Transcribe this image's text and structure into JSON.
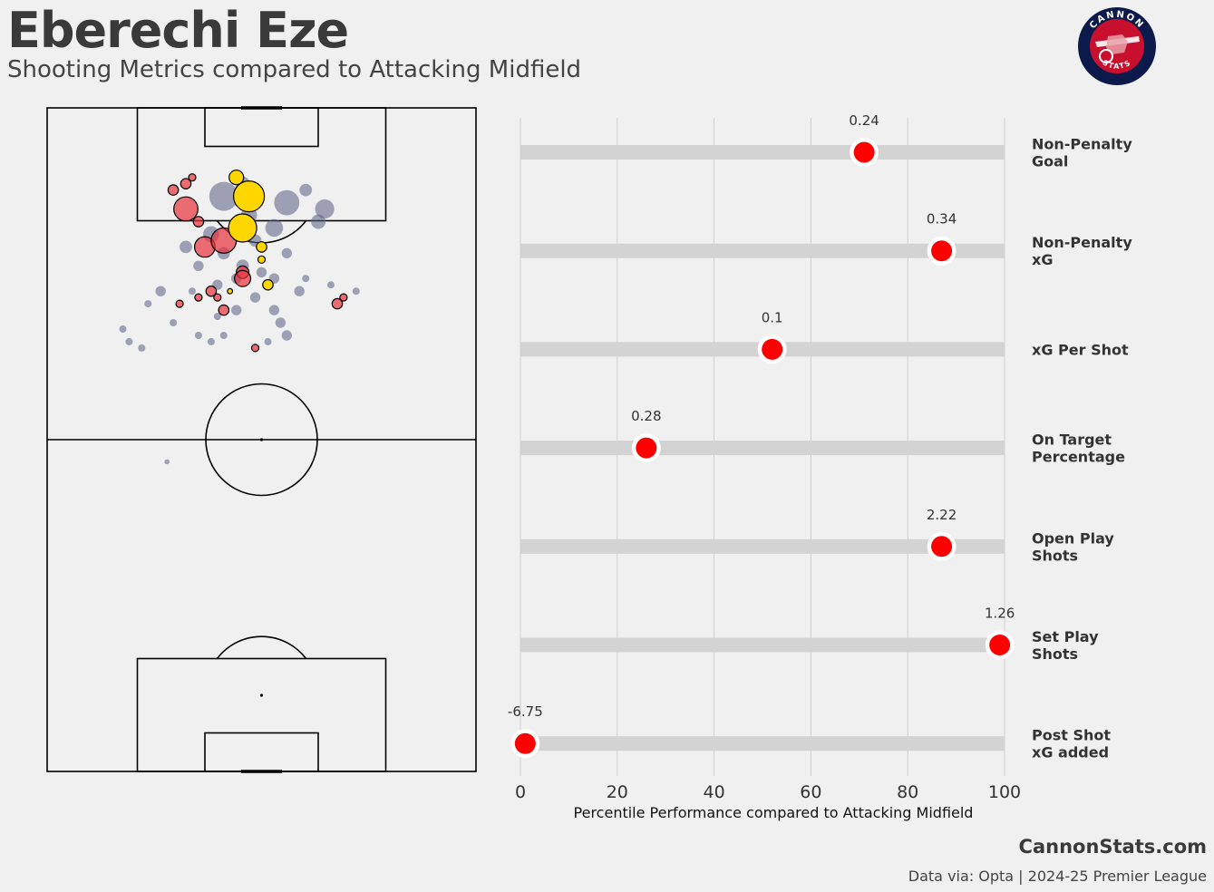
{
  "header": {
    "title": "Eberechi Eze",
    "subtitle": "Shooting Metrics compared to Attacking Midfield"
  },
  "logo": {
    "top_text": "CANNON",
    "bottom_text": "STATS",
    "icon": "cannon-crest-icon",
    "colors": {
      "outer": "#0b1a4a",
      "inner": "#c8102e"
    }
  },
  "footer": {
    "site": "CannonStats.com",
    "source": "Data via: Opta | 2024-25 Premier League"
  },
  "colors": {
    "background": "#f0f0f0",
    "bar_track": "#d3d3d3",
    "marker": "#ff0000",
    "goal": "#ffd700",
    "other_shot": "#5a5f85",
    "selected_shot": "#e8323c"
  },
  "chart_data": [
    {
      "type": "scatter",
      "name": "shot-map",
      "pitch": {
        "length": 105,
        "width": 68,
        "orientation": "vertical",
        "attack_direction": "up"
      },
      "series": [
        {
          "name": "other",
          "points": [
            {
              "x": 91,
              "y": 28,
              "xg": 0.16
            },
            {
              "x": 88,
              "y": 32,
              "xg": 0.05
            },
            {
              "x": 93,
              "y": 31,
              "xg": 0.04
            },
            {
              "x": 90,
              "y": 38,
              "xg": 0.12
            },
            {
              "x": 89,
              "y": 44,
              "xg": 0.07
            },
            {
              "x": 85,
              "y": 26,
              "xg": 0.05
            },
            {
              "x": 86,
              "y": 36,
              "xg": 0.06
            },
            {
              "x": 84,
              "y": 33,
              "xg": 0.03
            },
            {
              "x": 82,
              "y": 28,
              "xg": 0.03
            },
            {
              "x": 82,
              "y": 38,
              "xg": 0.02
            },
            {
              "x": 80,
              "y": 31,
              "xg": 0.03
            },
            {
              "x": 80,
              "y": 24,
              "xg": 0.02
            },
            {
              "x": 79,
              "y": 34,
              "xg": 0.02
            },
            {
              "x": 78,
              "y": 30,
              "xg": 0.02
            },
            {
              "x": 78,
              "y": 36,
              "xg": 0.02
            },
            {
              "x": 77,
              "y": 27,
              "xg": 0.02
            },
            {
              "x": 76,
              "y": 40,
              "xg": 0.02
            },
            {
              "x": 76,
              "y": 18,
              "xg": 0.02
            },
            {
              "x": 76,
              "y": 23,
              "xg": 0.01
            },
            {
              "x": 75,
              "y": 33,
              "xg": 0.02
            },
            {
              "x": 74,
              "y": 16,
              "xg": 0.01
            },
            {
              "x": 73,
              "y": 30,
              "xg": 0.02
            },
            {
              "x": 73,
              "y": 36,
              "xg": 0.02
            },
            {
              "x": 72,
              "y": 27,
              "xg": 0.01
            },
            {
              "x": 71,
              "y": 20,
              "xg": 0.01
            },
            {
              "x": 71,
              "y": 37,
              "xg": 0.02
            },
            {
              "x": 70,
              "y": 12,
              "xg": 0.01
            },
            {
              "x": 69,
              "y": 24,
              "xg": 0.01
            },
            {
              "x": 69,
              "y": 28,
              "xg": 0.01
            },
            {
              "x": 69,
              "y": 38,
              "xg": 0.02
            },
            {
              "x": 68,
              "y": 35,
              "xg": 0.01
            },
            {
              "x": 68,
              "y": 26,
              "xg": 0.01
            },
            {
              "x": 68,
              "y": 13,
              "xg": 0.01
            },
            {
              "x": 67,
              "y": 15,
              "xg": 0.01
            },
            {
              "x": 78,
              "y": 41,
              "xg": 0.01
            },
            {
              "x": 77,
              "y": 45,
              "xg": 0.01
            },
            {
              "x": 76,
              "y": 49,
              "xg": 0.01
            },
            {
              "x": 87,
              "y": 43,
              "xg": 0.04
            },
            {
              "x": 92,
              "y": 41,
              "xg": 0.03
            },
            {
              "x": 83,
              "y": 22,
              "xg": 0.03
            },
            {
              "x": 49,
              "y": 19,
              "xg": 0.005
            }
          ]
        },
        {
          "name": "eze",
          "points": [
            {
              "x": 93,
              "y": 22,
              "xg": 0.02
            },
            {
              "x": 92,
              "y": 20,
              "xg": 0.02
            },
            {
              "x": 94,
              "y": 23,
              "xg": 0.01
            },
            {
              "x": 89,
              "y": 22,
              "xg": 0.11
            },
            {
              "x": 87,
              "y": 24,
              "xg": 0.02
            },
            {
              "x": 83,
              "y": 25,
              "xg": 0.08
            },
            {
              "x": 84,
              "y": 28,
              "xg": 0.12
            },
            {
              "x": 79,
              "y": 31,
              "xg": 0.03
            },
            {
              "x": 78,
              "y": 31,
              "xg": 0.05
            },
            {
              "x": 76,
              "y": 26,
              "xg": 0.02
            },
            {
              "x": 75,
              "y": 24,
              "xg": 0.01
            },
            {
              "x": 75,
              "y": 27,
              "xg": 0.01
            },
            {
              "x": 74,
              "y": 21,
              "xg": 0.01
            },
            {
              "x": 73,
              "y": 28,
              "xg": 0.02
            },
            {
              "x": 75,
              "y": 47,
              "xg": 0.01
            },
            {
              "x": 74,
              "y": 46,
              "xg": 0.02
            },
            {
              "x": 67,
              "y": 33,
              "xg": 0.01
            }
          ]
        },
        {
          "name": "goal",
          "points": [
            {
              "x": 94,
              "y": 30,
              "xg": 0.04
            },
            {
              "x": 91,
              "y": 32,
              "xg": 0.18
            },
            {
              "x": 86,
              "y": 31,
              "xg": 0.15
            },
            {
              "x": 83,
              "y": 34,
              "xg": 0.02
            },
            {
              "x": 81,
              "y": 34,
              "xg": 0.01
            },
            {
              "x": 77,
              "y": 35,
              "xg": 0.02
            },
            {
              "x": 76,
              "y": 29,
              "xg": 0.005
            }
          ]
        }
      ]
    },
    {
      "type": "bar",
      "name": "percentile-bars",
      "orientation": "horizontal",
      "xlabel": "Percentile Performance compared to Attacking Midfield",
      "xlim": [
        0,
        100
      ],
      "xticks": [
        0,
        20,
        40,
        60,
        80,
        100
      ],
      "grid": true,
      "categories": [
        "Non-Penalty\nGoal",
        "Non-Penalty\nxG",
        "xG Per Shot",
        "On Target\nPercentage",
        "Open Play\nShots",
        "Set Play\nShots",
        "Post Shot\nxG added"
      ],
      "values": [
        71,
        87,
        52,
        26,
        87,
        99,
        1
      ],
      "data_labels": [
        "0.24",
        "0.34",
        "0.1",
        "0.28",
        "2.22",
        "1.26",
        "-6.75"
      ]
    }
  ]
}
